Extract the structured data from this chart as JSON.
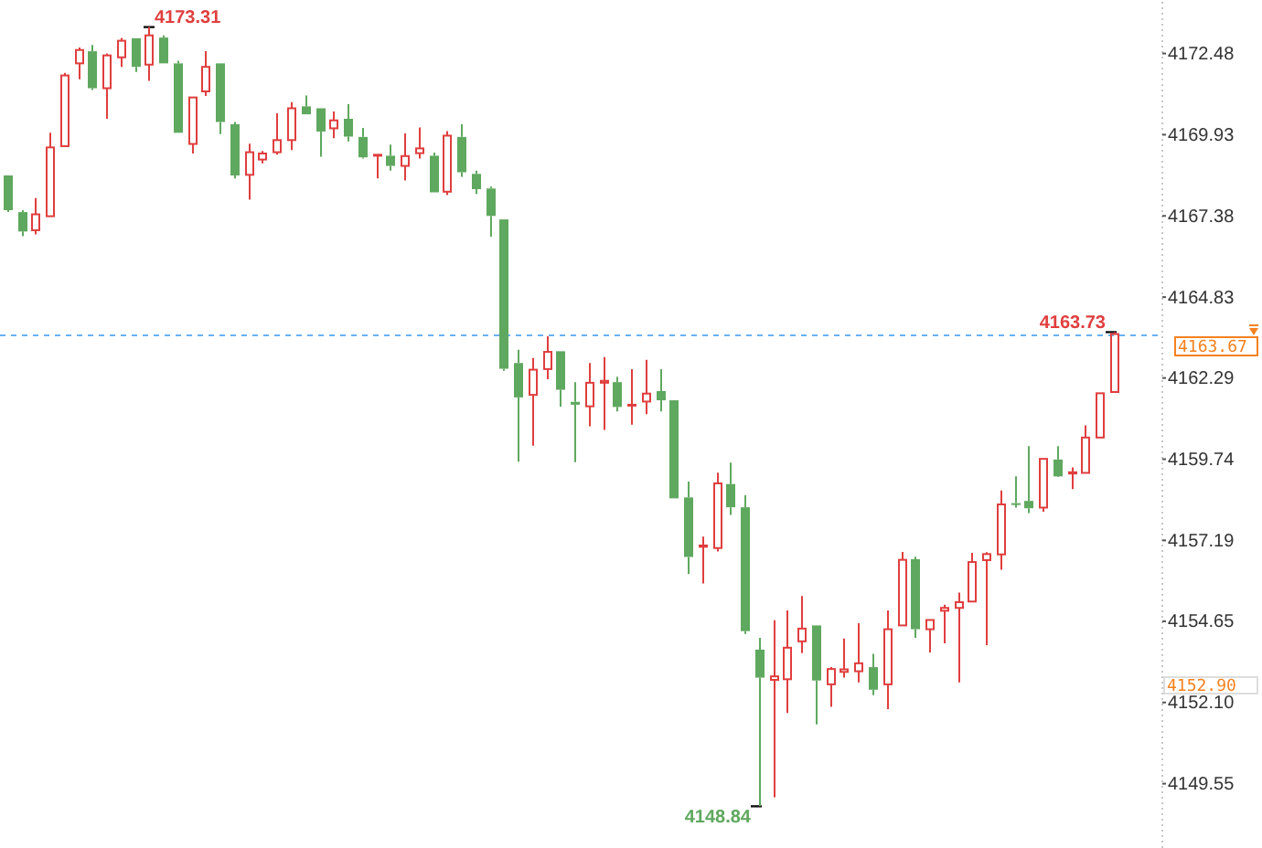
{
  "chart_data": {
    "type": "candlestick",
    "categories": [
      null,
      null,
      null,
      null,
      null,
      null,
      null,
      null,
      null,
      null,
      null,
      null,
      null,
      null,
      null,
      null,
      null,
      null,
      null,
      null,
      null,
      null,
      null,
      null,
      null,
      null,
      null,
      null,
      null,
      null,
      null,
      null,
      null,
      null,
      null,
      null,
      null,
      null,
      null,
      null,
      null,
      null,
      null,
      null,
      null,
      null,
      null,
      null,
      null,
      null,
      null,
      null,
      null,
      null,
      null,
      null,
      null,
      null,
      null,
      null,
      null,
      null,
      null,
      null,
      null,
      null,
      null,
      null,
      null,
      null,
      null,
      null,
      null,
      null,
      null,
      null,
      null,
      null,
      null,
      null,
      null,
      null
    ],
    "ohlc": [
      [
        4168.65,
        4168.65,
        4167.5,
        4167.56
      ],
      [
        4167.5,
        4167.56,
        4166.74,
        4166.89
      ],
      [
        4166.93,
        4167.94,
        4166.8,
        4167.43
      ],
      [
        4167.37,
        4169.99,
        4167.37,
        4169.53
      ],
      [
        4169.57,
        4171.87,
        4169.57,
        4171.79
      ],
      [
        4172.17,
        4172.67,
        4171.67,
        4172.59
      ],
      [
        4172.55,
        4172.75,
        4171.33,
        4171.39
      ],
      [
        4171.39,
        4172.48,
        4170.43,
        4172.42
      ],
      [
        4172.36,
        4172.97,
        4172.06,
        4172.88
      ],
      [
        4172.96,
        4172.96,
        4171.9,
        4172.06
      ],
      [
        4172.13,
        4173.31,
        4171.62,
        4173.05
      ],
      [
        4172.98,
        4173.05,
        4172.17,
        4172.17
      ],
      [
        4172.17,
        4172.25,
        4169.99,
        4169.99
      ],
      [
        4169.64,
        4171.1,
        4169.34,
        4171.1
      ],
      [
        4171.29,
        4172.55,
        4171.15,
        4172.06
      ],
      [
        4172.17,
        4172.17,
        4169.95,
        4170.33
      ],
      [
        4170.26,
        4170.33,
        4168.56,
        4168.65
      ],
      [
        4168.67,
        4169.65,
        4167.89,
        4169.38
      ],
      [
        4169.15,
        4169.42,
        4169.03,
        4169.34
      ],
      [
        4169.38,
        4170.6,
        4169.3,
        4169.76
      ],
      [
        4169.76,
        4170.95,
        4169.45,
        4170.76
      ],
      [
        4170.82,
        4171.16,
        4170.57,
        4170.57
      ],
      [
        4170.76,
        4170.76,
        4169.24,
        4170.03
      ],
      [
        4170.13,
        4170.66,
        4169.82,
        4170.38
      ],
      [
        4170.43,
        4170.89,
        4169.72,
        4169.87
      ],
      [
        4169.86,
        4170.14,
        4169.18,
        4169.22
      ],
      [
        4169.27,
        4169.3,
        4168.56,
        4169.3
      ],
      [
        4169.27,
        4169.62,
        4168.8,
        4168.95
      ],
      [
        4168.95,
        4169.97,
        4168.49,
        4169.26
      ],
      [
        4169.35,
        4170.16,
        4169.18,
        4169.5
      ],
      [
        4169.27,
        4169.37,
        4168.12,
        4168.12
      ],
      [
        4168.14,
        4170.04,
        4168.03,
        4169.9
      ],
      [
        4169.86,
        4170.26,
        4168.61,
        4168.75
      ],
      [
        4168.7,
        4168.8,
        4168.07,
        4168.22
      ],
      [
        4168.24,
        4168.3,
        4166.73,
        4167.38
      ],
      [
        4167.27,
        4167.27,
        4162.52,
        4162.58
      ],
      [
        4162.76,
        4163.18,
        4159.66,
        4161.68
      ],
      [
        4161.76,
        4162.92,
        4160.16,
        4162.55
      ],
      [
        4162.57,
        4163.6,
        4162.25,
        4163.11
      ],
      [
        4163.13,
        4163.13,
        4161.39,
        4161.92
      ],
      [
        4161.54,
        4162.16,
        4159.65,
        4161.45
      ],
      [
        4161.4,
        4162.76,
        4160.77,
        4162.14
      ],
      [
        4162.14,
        4162.95,
        4160.66,
        4162.2
      ],
      [
        4162.16,
        4162.33,
        4161.24,
        4161.38
      ],
      [
        4161.43,
        4162.57,
        4160.82,
        4161.45
      ],
      [
        4161.55,
        4162.86,
        4161.15,
        4161.8
      ],
      [
        4161.88,
        4162.57,
        4161.24,
        4161.59
      ],
      [
        4161.59,
        4161.59,
        4158.51,
        4158.51
      ],
      [
        4158.54,
        4159.04,
        4156.13,
        4156.67
      ],
      [
        4156.99,
        4157.31,
        4155.84,
        4157.03
      ],
      [
        4156.95,
        4159.32,
        4156.84,
        4158.98
      ],
      [
        4158.96,
        4159.63,
        4157.99,
        4158.23
      ],
      [
        4158.23,
        4158.61,
        4154.25,
        4154.34
      ],
      [
        4153.76,
        4154.13,
        4148.84,
        4152.88
      ],
      [
        4152.81,
        4154.68,
        4149.12,
        4152.92
      ],
      [
        4152.83,
        4154.99,
        4151.77,
        4153.82
      ],
      [
        4154.02,
        4155.44,
        4153.65,
        4154.42
      ],
      [
        4154.52,
        4154.52,
        4151.41,
        4152.79
      ],
      [
        4152.67,
        4153.21,
        4151.96,
        4153.15
      ],
      [
        4153.06,
        4154.11,
        4152.88,
        4153.14
      ],
      [
        4153.08,
        4154.59,
        4152.73,
        4153.33
      ],
      [
        4153.21,
        4153.63,
        4152.33,
        4152.5
      ],
      [
        4152.67,
        4154.99,
        4151.89,
        4154.4
      ],
      [
        4154.52,
        4156.83,
        4154.52,
        4156.58
      ],
      [
        4156.6,
        4156.68,
        4154.13,
        4154.4
      ],
      [
        4154.4,
        4154.69,
        4153.67,
        4154.69
      ],
      [
        4154.98,
        4155.17,
        4153.96,
        4155.07
      ],
      [
        4155.07,
        4155.55,
        4152.73,
        4155.25
      ],
      [
        4155.27,
        4156.8,
        4155.27,
        4156.51
      ],
      [
        4156.57,
        4156.82,
        4153.9,
        4156.76
      ],
      [
        4156.75,
        4158.76,
        4156.27,
        4158.32
      ],
      [
        4158.36,
        4159.2,
        4158.22,
        4158.34
      ],
      [
        4158.43,
        4160.15,
        4158.05,
        4158.2
      ],
      [
        4158.22,
        4159.75,
        4158.09,
        4159.75
      ],
      [
        4159.73,
        4160.15,
        4159.18,
        4159.2
      ],
      [
        4159.29,
        4159.48,
        4158.8,
        4159.33
      ],
      [
        4159.31,
        4160.8,
        4159.31,
        4160.42
      ],
      [
        4160.42,
        4161.81,
        4160.42,
        4161.81
      ],
      [
        4161.85,
        4163.73,
        4161.85,
        4163.67
      ],
      null,
      null,
      null
    ],
    "colors": [
      "#5fa85f",
      "#5fa85f",
      "#e03e3e",
      "#e03e3e",
      "#e03e3e",
      "#e03e3e",
      "#5fa85f",
      "#e03e3e",
      "#e03e3e",
      "#5fa85f",
      "#e03e3e",
      "#5fa85f",
      "#5fa85f",
      "#e03e3e",
      "#e03e3e",
      "#5fa85f",
      "#5fa85f",
      "#e03e3e",
      "#e03e3e",
      "#e03e3e",
      "#e03e3e",
      "#5fa85f",
      "#5fa85f",
      "#e03e3e",
      "#5fa85f",
      "#5fa85f",
      "#e03e3e",
      "#5fa85f",
      "#e03e3e",
      "#e03e3e",
      "#5fa85f",
      "#e03e3e",
      "#5fa85f",
      "#5fa85f",
      "#5fa85f",
      "#5fa85f",
      "#5fa85f",
      "#e03e3e",
      "#e03e3e",
      "#5fa85f",
      "#5fa85f",
      "#e03e3e",
      "#e03e3e",
      "#5fa85f",
      "#e03e3e",
      "#e03e3e",
      "#5fa85f",
      "#5fa85f",
      "#5fa85f",
      "#e03e3e",
      "#e03e3e",
      "#5fa85f",
      "#5fa85f",
      "#5fa85f",
      "#e03e3e",
      "#e03e3e",
      "#e03e3e",
      "#5fa85f",
      "#e03e3e",
      "#e03e3e",
      "#e03e3e",
      "#5fa85f",
      "#e03e3e",
      "#e03e3e",
      "#5fa85f",
      "#e03e3e",
      "#e03e3e",
      "#e03e3e",
      "#e03e3e",
      "#e03e3e",
      "#e03e3e",
      "#5fa85f",
      "#5fa85f",
      "#e03e3e",
      "#5fa85f",
      "#e03e3e",
      "#e03e3e",
      "#e03e3e",
      "#e03e3e",
      null,
      null,
      null
    ],
    "ylim": [
      4147.53,
      4174.16
    ],
    "yticks": [
      4149.55,
      {
        "value": 4152.1,
        "label": "4152.10"
      },
      4154.65,
      4157.19,
      4159.74,
      4162.29,
      4164.83,
      4167.38,
      4169.93,
      4172.48
    ],
    "tick_labels": "y",
    "ref_lines": [
      {
        "axis": "y",
        "value": 4163.67,
        "label": "4163.67",
        "color": "#6ab0f3",
        "line_style": "dashed"
      }
    ],
    "annotations": [
      "4173.31",
      "4148.84",
      "4163.73",
      "4152.90"
    ]
  }
}
